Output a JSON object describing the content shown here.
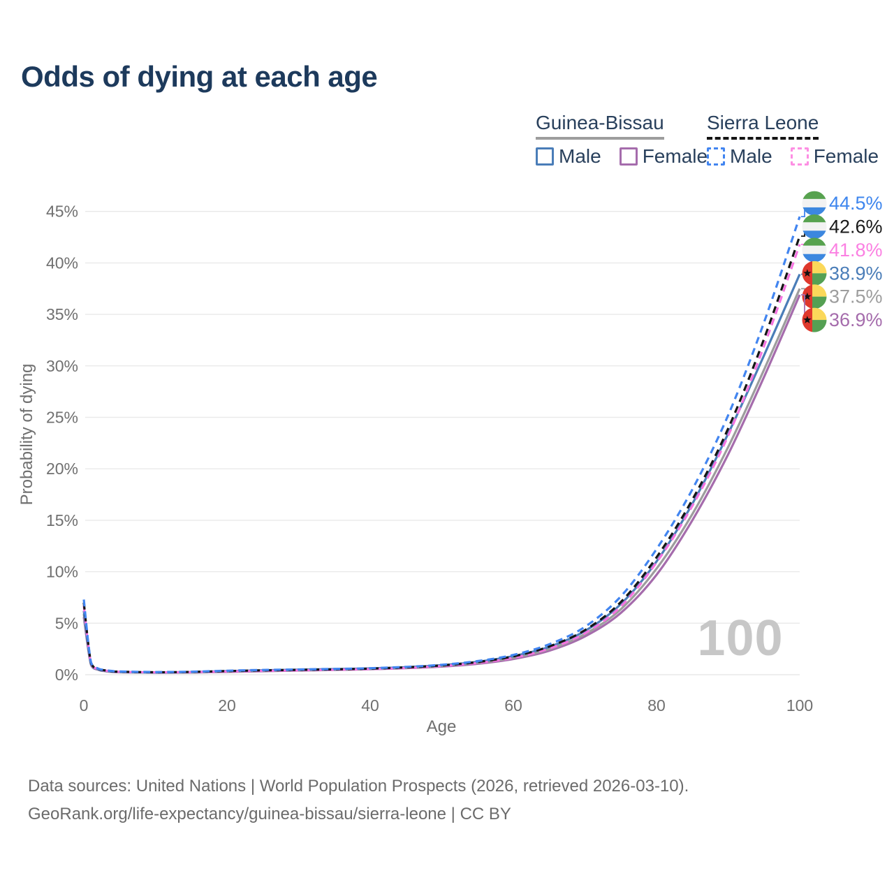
{
  "title": "Odds of dying at each age",
  "watermark_age": "100",
  "legend": {
    "groups": [
      {
        "name": "Guinea-Bissau",
        "underline_style": "solid",
        "underline_color": "#9d9d9d",
        "items": [
          {
            "label": "Male",
            "color": "#4a7db8",
            "dashed": false
          },
          {
            "label": "Female",
            "color": "#a56cac",
            "dashed": false
          }
        ]
      },
      {
        "name": "Sierra Leone",
        "underline_style": "dashed",
        "underline_color": "#141414",
        "items": [
          {
            "label": "Male",
            "color": "#4285f0",
            "dashed": true
          },
          {
            "label": "Female",
            "color": "#fd8fe3",
            "dashed": true
          }
        ]
      }
    ]
  },
  "footer": {
    "line1": "Data sources: United Nations | World Population Prospects (2026, retrieved 2026-03-10).",
    "line2": "GeoRank.org/life-expectancy/guinea-bissau/sierra-leone | CC BY"
  },
  "chart_data": {
    "type": "line",
    "title": "Odds of dying at each age",
    "xlabel": "Age",
    "ylabel": "Probability of dying",
    "xlim": [
      0,
      100
    ],
    "ylim": [
      0,
      46
    ],
    "grid": "horizontal",
    "legend_position": "top-right",
    "x_ticks": [
      0,
      20,
      40,
      60,
      80,
      100
    ],
    "x_tick_labels": [
      "0",
      "20",
      "40",
      "60",
      "80",
      "100"
    ],
    "y_ticks": [
      0,
      5,
      10,
      15,
      20,
      25,
      30,
      35,
      40,
      45
    ],
    "y_tick_labels": [
      "0%",
      "5%",
      "10%",
      "15%",
      "20%",
      "25%",
      "30%",
      "35%",
      "40%",
      "45%"
    ],
    "ages": [
      0,
      1,
      2,
      3,
      4,
      5,
      10,
      15,
      20,
      25,
      30,
      35,
      40,
      45,
      50,
      55,
      60,
      65,
      70,
      75,
      80,
      85,
      90,
      95,
      100
    ],
    "series": [
      {
        "id": "gb-female",
        "name": "Guinea-Bissau Female",
        "country": "Guinea-Bissau",
        "sex": "Female",
        "flag": "guinea-bissau",
        "dashed": false,
        "color": "#a56cac",
        "label_color": "#a56cac",
        "end_label": "36.9%",
        "values": [
          5.6,
          0.95,
          0.48,
          0.34,
          0.27,
          0.24,
          0.2,
          0.21,
          0.27,
          0.34,
          0.41,
          0.46,
          0.53,
          0.63,
          0.79,
          1.06,
          1.52,
          2.33,
          3.72,
          6.0,
          9.7,
          15.0,
          21.4,
          28.9,
          36.9
        ]
      },
      {
        "id": "gb-both",
        "name": "Guinea-Bissau (both sexes)",
        "country": "Guinea-Bissau",
        "sex": "Both",
        "flag": "guinea-bissau",
        "dashed": false,
        "color": "#9d9d9d",
        "label_color": "#9d9d9d",
        "end_label": "37.5%",
        "values": [
          5.9,
          1.0,
          0.5,
          0.36,
          0.29,
          0.25,
          0.21,
          0.23,
          0.31,
          0.39,
          0.45,
          0.5,
          0.57,
          0.68,
          0.85,
          1.14,
          1.65,
          2.48,
          3.95,
          6.35,
          10.3,
          15.6,
          22.1,
          29.6,
          37.5
        ]
      },
      {
        "id": "gb-male",
        "name": "Guinea-Bissau Male",
        "country": "Guinea-Bissau",
        "sex": "Male",
        "flag": "guinea-bissau",
        "dashed": false,
        "color": "#4a7db8",
        "label_color": "#4a7db8",
        "end_label": "38.9%",
        "values": [
          6.2,
          1.05,
          0.52,
          0.38,
          0.3,
          0.27,
          0.22,
          0.26,
          0.35,
          0.43,
          0.49,
          0.54,
          0.61,
          0.73,
          0.92,
          1.25,
          1.8,
          2.7,
          4.25,
          6.85,
          11.0,
          16.6,
          23.4,
          31.0,
          38.9
        ]
      },
      {
        "id": "sl-female",
        "name": "Sierra Leone Female",
        "country": "Sierra Leone",
        "sex": "Female",
        "flag": "sierra-leone",
        "dashed": true,
        "color": "#f573e0",
        "label_color": "#fb80e2",
        "end_label": "41.8%",
        "values": [
          6.7,
          1.1,
          0.55,
          0.4,
          0.32,
          0.28,
          0.23,
          0.25,
          0.31,
          0.37,
          0.43,
          0.48,
          0.55,
          0.66,
          0.84,
          1.14,
          1.64,
          2.54,
          4.02,
          6.62,
          10.9,
          16.4,
          23.2,
          31.9,
          41.8
        ]
      },
      {
        "id": "sl-both",
        "name": "Sierra Leone (both sexes)",
        "country": "Sierra Leone",
        "sex": "Both",
        "flag": "sierra-leone",
        "dashed": true,
        "color": "#151515",
        "label_color": "#1a1a1a",
        "end_label": "42.6%",
        "values": [
          7.0,
          1.15,
          0.57,
          0.42,
          0.34,
          0.29,
          0.24,
          0.27,
          0.35,
          0.42,
          0.47,
          0.52,
          0.59,
          0.71,
          0.9,
          1.23,
          1.78,
          2.74,
          4.33,
          7.05,
          11.4,
          17.0,
          23.9,
          32.6,
          42.6
        ]
      },
      {
        "id": "sl-male",
        "name": "Sierra Leone Male",
        "country": "Sierra Leone",
        "sex": "Male",
        "flag": "sierra-leone",
        "dashed": true,
        "color": "#4285f0",
        "label_color": "#3e86ee",
        "end_label": "44.5%",
        "values": [
          7.3,
          1.2,
          0.6,
          0.45,
          0.36,
          0.31,
          0.26,
          0.29,
          0.39,
          0.46,
          0.51,
          0.56,
          0.63,
          0.76,
          0.96,
          1.32,
          1.92,
          2.95,
          4.65,
          7.6,
          12.2,
          18.0,
          25.2,
          34.2,
          44.5
        ]
      }
    ],
    "flag_colors": {
      "sierra-leone": {
        "green": "#57a24f",
        "white": "#f2f2f2",
        "blue": "#3c87df"
      },
      "guinea-bissau": {
        "red": "#df382c",
        "yellow": "#fbd85a",
        "green": "#55a053",
        "star": "#111111"
      }
    }
  }
}
